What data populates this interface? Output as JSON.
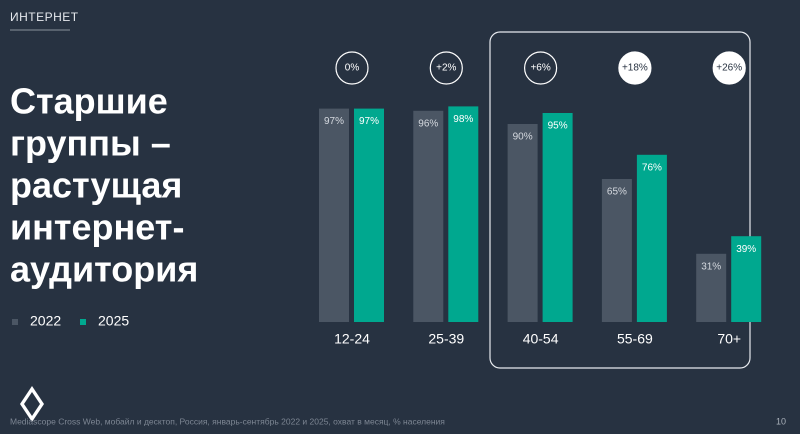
{
  "header": "ИНТЕРНЕТ",
  "title_lines": [
    "Старшие",
    "группы –",
    "растущая",
    "интернет-",
    "аудитория"
  ],
  "chart_data": {
    "type": "bar",
    "categories": [
      "12-24",
      "25-39",
      "40-54",
      "55-69",
      "70+"
    ],
    "series": [
      {
        "name": "2022",
        "color": "#4b5664",
        "values": [
          97,
          96,
          90,
          65,
          31
        ],
        "value_labels": [
          "97%",
          "96%",
          "90%",
          "65%",
          "31%"
        ]
      },
      {
        "name": "2025",
        "color": "#00a88f",
        "values": [
          97,
          98,
          95,
          76,
          39
        ],
        "value_labels": [
          "97%",
          "98%",
          "95%",
          "76%",
          "39%"
        ]
      }
    ],
    "annotations": [
      "0%",
      "+2%",
      "+6%",
      "+18%",
      "+26%"
    ],
    "annotations_filled": [
      false,
      false,
      false,
      true,
      true
    ],
    "ylim": [
      0,
      100
    ]
  },
  "footer": "Mediascope Cross Web, мобайл и десктоп, Россия, январь-сентябрь 2022 и 2025, охват в месяц, % населения",
  "page_number": "10"
}
